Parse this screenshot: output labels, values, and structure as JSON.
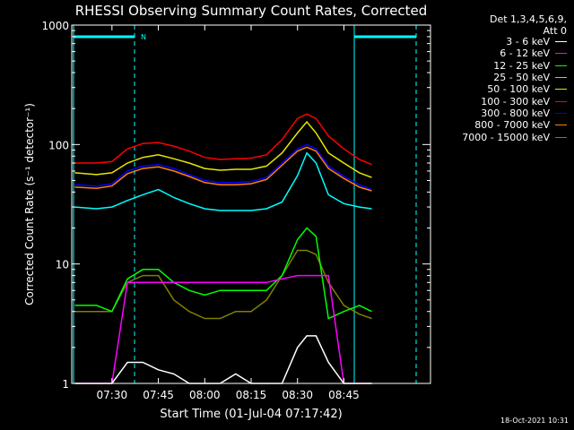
{
  "chart_data": {
    "type": "line",
    "title": "RHESSI Observing Summary Count Rates, Corrected",
    "xlabel": "Start Time (01-Jul-04 07:17:42)",
    "ylabel": "Corrected Count Rate (s⁻¹ detector⁻¹)",
    "yscale": "log",
    "ylim": [
      1,
      1000
    ],
    "xlim_minutes_after_0717": [
      0,
      116
    ],
    "xticks": [
      "07:30",
      "07:45",
      "08:00",
      "08:15",
      "08:30",
      "08:45"
    ],
    "yticks": [
      "1",
      "10",
      "100",
      "1000"
    ],
    "legend_header": [
      "Det 1,3,4,5,6,9,",
      "Att 0"
    ],
    "legend_placement": "right",
    "annotations": {
      "marker_N": "N",
      "datestamp": "18-Oct-2021 10:31"
    },
    "x_times": [
      "07:18",
      "07:25",
      "07:30",
      "07:35",
      "07:40",
      "07:45",
      "07:50",
      "07:55",
      "08:00",
      "08:05",
      "08:10",
      "08:15",
      "08:20",
      "08:25",
      "08:30",
      "08:33",
      "08:36",
      "08:40",
      "08:45",
      "08:50",
      "08:54"
    ],
    "series": [
      {
        "name": "3 - 6 keV",
        "color": "#ffffff",
        "values": [
          1,
          1,
          1,
          1.5,
          1.5,
          1.3,
          1.2,
          1,
          1,
          1,
          1.2,
          1,
          1,
          1,
          2,
          2.5,
          2.5,
          1.5,
          1,
          1,
          1
        ]
      },
      {
        "name": "6 - 12 keV",
        "color": "#ff00ff",
        "values": [
          1,
          1,
          1,
          7,
          7,
          7,
          7,
          7,
          7,
          7,
          7,
          7,
          7,
          7.5,
          8,
          8,
          8,
          8,
          1,
          1,
          1
        ]
      },
      {
        "name": "12 - 25 keV",
        "color": "#00ff00",
        "values": [
          4.5,
          4.5,
          4,
          7.5,
          9,
          9,
          7,
          6,
          5.5,
          6,
          6,
          6,
          6,
          8,
          16,
          20,
          17,
          3.5,
          4,
          4.5,
          4
        ]
      },
      {
        "name": "25 - 50 keV",
        "color": "#00ffff",
        "values": [
          30,
          29,
          30,
          34,
          38,
          42,
          36,
          32,
          29,
          28,
          28,
          28,
          29,
          33,
          55,
          85,
          70,
          38,
          32,
          30,
          29
        ]
      },
      {
        "name": "50 - 100 keV",
        "color": "#e6e600",
        "values": [
          58,
          56,
          58,
          70,
          78,
          82,
          76,
          70,
          63,
          61,
          62,
          62,
          66,
          85,
          125,
          155,
          125,
          85,
          70,
          58,
          53
        ]
      },
      {
        "name": "100 - 300 keV",
        "color": "#ff0000",
        "values": [
          70,
          70,
          72,
          92,
          102,
          104,
          97,
          88,
          78,
          75,
          76,
          77,
          82,
          110,
          165,
          180,
          165,
          118,
          92,
          75,
          68
        ]
      },
      {
        "name": "300 - 800 keV",
        "color": "#0000ff",
        "values": [
          46,
          45,
          47,
          60,
          66,
          68,
          63,
          56,
          50,
          48,
          48,
          49,
          53,
          70,
          92,
          100,
          92,
          66,
          54,
          46,
          42
        ]
      },
      {
        "name": "800 - 7000 keV",
        "color": "#ff8000",
        "values": [
          44,
          43,
          45,
          57,
          63,
          65,
          60,
          54,
          48,
          46,
          46,
          47,
          51,
          67,
          88,
          95,
          88,
          63,
          52,
          44,
          41
        ]
      },
      {
        "name": "7000 - 15000 keV",
        "color": "#808000",
        "values": [
          4,
          4,
          4,
          7,
          8,
          8,
          5,
          4,
          3.5,
          3.5,
          4,
          4,
          5,
          8,
          13,
          13,
          12,
          7,
          4.5,
          3.8,
          3.5
        ]
      }
    ]
  }
}
